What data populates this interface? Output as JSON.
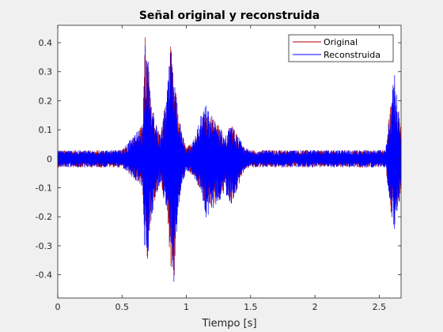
{
  "chart_data": {
    "type": "line",
    "title": "Señal original y reconstruida",
    "xlabel": "Tiempo [s]",
    "ylabel": "",
    "xlim": [
      0,
      2.67
    ],
    "ylim": [
      -0.48,
      0.46
    ],
    "xticks": [
      0,
      0.5,
      1,
      1.5,
      2,
      2.5
    ],
    "xtick_labels": [
      "0",
      "0.5",
      "1",
      "1.5",
      "2",
      "2.5"
    ],
    "yticks": [
      0.4,
      0.3,
      0.2,
      0.1,
      0,
      -0.1,
      -0.2,
      -0.3,
      -0.4
    ],
    "ytick_labels": [
      "0.4",
      "0.3",
      "0.2",
      "0.1",
      "0",
      "-0.1",
      "-0.2",
      "-0.3",
      "-0.4"
    ],
    "grid": false,
    "legend_position": "top-right",
    "series": [
      {
        "name": "Original",
        "color": "#b00000",
        "envelope": {
          "t": [
            0,
            0.5,
            0.66,
            0.68,
            0.7,
            0.72,
            0.75,
            0.8,
            0.85,
            0.88,
            0.9,
            0.93,
            0.96,
            1.0,
            1.05,
            1.12,
            1.15,
            1.2,
            1.25,
            1.3,
            1.35,
            1.4,
            1.45,
            1.5,
            2.0,
            2.55,
            2.6,
            2.62,
            2.64,
            2.67
          ],
          "pos": [
            0.03,
            0.03,
            0.12,
            0.44,
            0.38,
            0.22,
            0.15,
            0.08,
            0.24,
            0.4,
            0.28,
            0.2,
            0.1,
            0.04,
            0.06,
            0.16,
            0.18,
            0.14,
            0.12,
            0.08,
            0.12,
            0.08,
            0.04,
            0.03,
            0.03,
            0.03,
            0.25,
            0.29,
            0.22,
            0.1
          ],
          "neg": [
            -0.03,
            -0.03,
            -0.1,
            -0.36,
            -0.35,
            -0.25,
            -0.15,
            -0.08,
            -0.2,
            -0.38,
            -0.47,
            -0.2,
            -0.1,
            -0.04,
            -0.06,
            -0.12,
            -0.2,
            -0.17,
            -0.15,
            -0.12,
            -0.16,
            -0.1,
            -0.04,
            -0.03,
            -0.03,
            -0.03,
            -0.22,
            -0.26,
            -0.2,
            -0.1
          ]
        }
      },
      {
        "name": "Reconstruida",
        "color": "#0000ff",
        "envelope": {
          "t": [
            0,
            0.5,
            0.66,
            0.68,
            0.7,
            0.72,
            0.75,
            0.8,
            0.85,
            0.88,
            0.9,
            0.93,
            0.96,
            1.0,
            1.05,
            1.12,
            1.15,
            1.2,
            1.25,
            1.3,
            1.35,
            1.4,
            1.45,
            1.5,
            2.0,
            2.55,
            2.6,
            2.62,
            2.64,
            2.67
          ],
          "pos": [
            0.03,
            0.03,
            0.12,
            0.46,
            0.4,
            0.22,
            0.15,
            0.08,
            0.24,
            0.39,
            0.28,
            0.2,
            0.1,
            0.04,
            0.06,
            0.16,
            0.19,
            0.15,
            0.12,
            0.08,
            0.12,
            0.08,
            0.04,
            0.03,
            0.03,
            0.03,
            0.26,
            0.29,
            0.22,
            0.1
          ],
          "neg": [
            -0.03,
            -0.03,
            -0.1,
            -0.37,
            -0.35,
            -0.25,
            -0.15,
            -0.08,
            -0.2,
            -0.38,
            -0.48,
            -0.2,
            -0.1,
            -0.04,
            -0.06,
            -0.12,
            -0.21,
            -0.18,
            -0.15,
            -0.12,
            -0.16,
            -0.1,
            -0.04,
            -0.03,
            -0.03,
            -0.03,
            -0.22,
            -0.26,
            -0.2,
            -0.1
          ]
        }
      }
    ]
  }
}
